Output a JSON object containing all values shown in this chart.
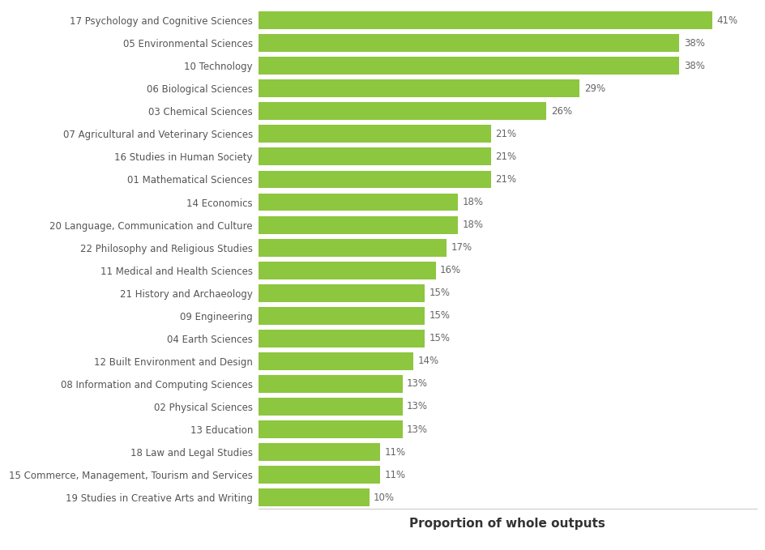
{
  "categories": [
    "19 Studies in Creative Arts and Writing",
    "15 Commerce, Management, Tourism and Services",
    "18 Law and Legal Studies",
    "13 Education",
    "02 Physical Sciences",
    "08 Information and Computing Sciences",
    "12 Built Environment and Design",
    "04 Earth Sciences",
    "09 Engineering",
    "21 History and Archaeology",
    "11 Medical and Health Sciences",
    "22 Philosophy and Religious Studies",
    "20 Language, Communication and Culture",
    "14 Economics",
    "01 Mathematical Sciences",
    "16 Studies in Human Society",
    "07 Agricultural and Veterinary Sciences",
    "03 Chemical Sciences",
    "06 Biological Sciences",
    "10 Technology",
    "05 Environmental Sciences",
    "17 Psychology and Cognitive Sciences"
  ],
  "values": [
    10,
    11,
    11,
    13,
    13,
    13,
    14,
    15,
    15,
    15,
    16,
    17,
    18,
    18,
    21,
    21,
    21,
    26,
    29,
    38,
    38,
    41
  ],
  "bar_color": "#8DC63F",
  "xlabel": "Proportion of whole outputs",
  "background_color": "#ffffff",
  "label_color": "#555555",
  "value_color": "#666666",
  "xlim": [
    0,
    45
  ],
  "xlabel_fontsize": 11,
  "tick_fontsize": 8.5,
  "value_fontsize": 8.5,
  "bar_height": 0.78,
  "spine_color": "#cccccc"
}
